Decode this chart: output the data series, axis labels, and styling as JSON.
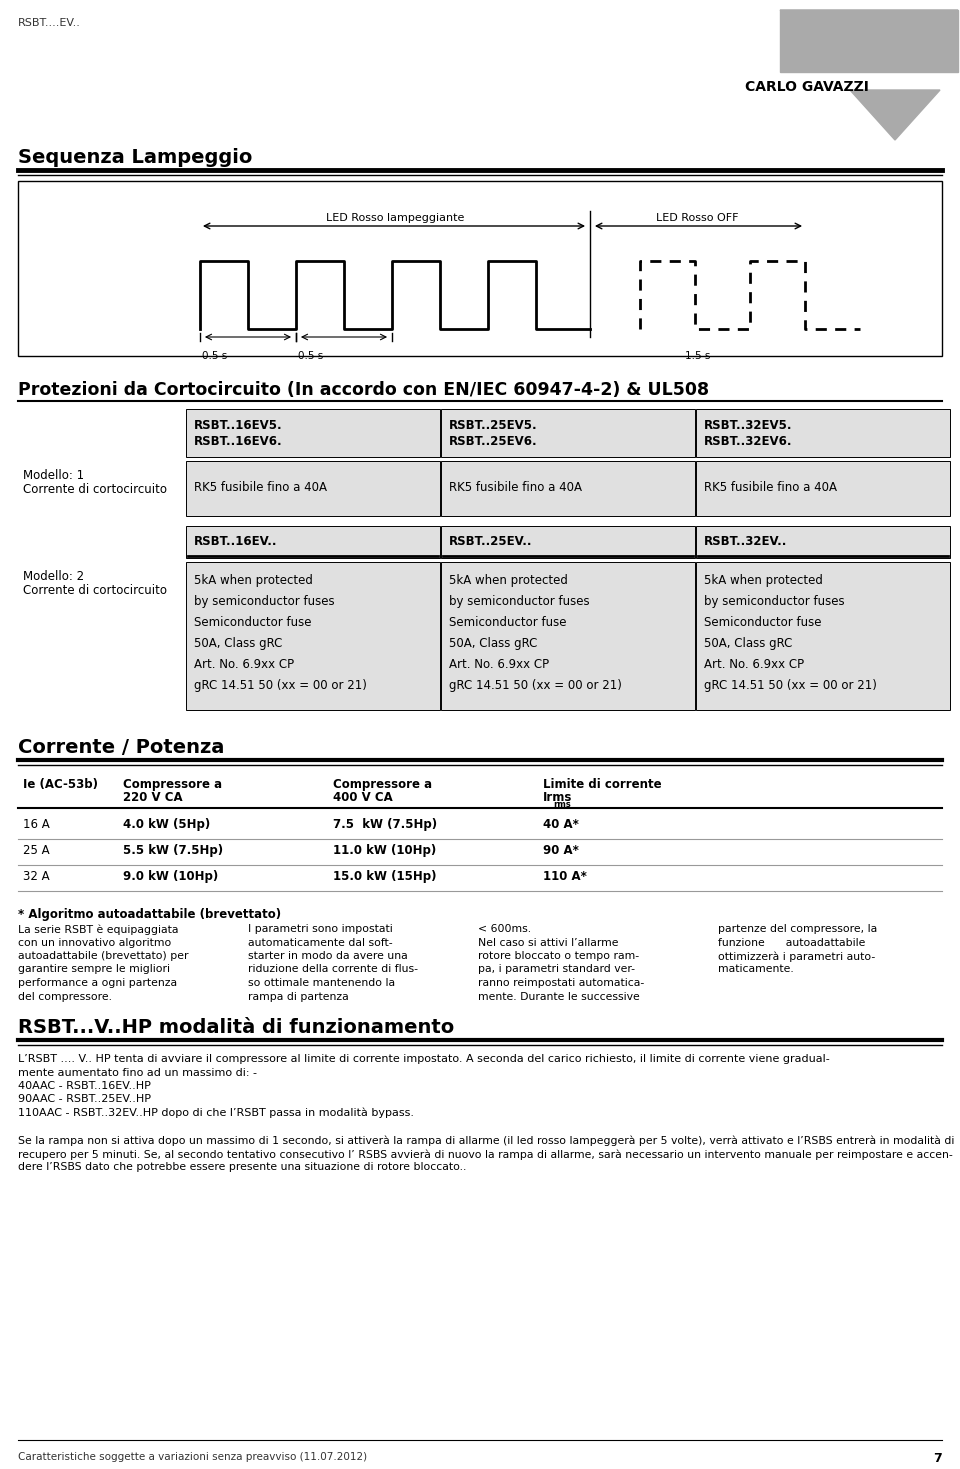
{
  "page_title": "RSBT....EV..",
  "brand": "CARLO GAVAZZI",
  "bg_color": "#ffffff",
  "section1_title": "Sequenza Lampeggio",
  "led_rosso_lampeggiante": "LED Rosso lampeggiante",
  "led_rosso_off": "LED Rosso OFF",
  "time1": "0.5 s",
  "time2": "0.5 s",
  "time3": "1.5 s",
  "section2_title": "Protezioni da Cortocircuito (In accordo con EN/IEC 60947-4-2) & UL508",
  "col_headers": [
    "RSBT..16EV5.\nRSBT..16EV6.",
    "RSBT..25EV5.\nRSBT..25EV6.",
    "RSBT..32EV5.\nRSBT..32EV6."
  ],
  "col_headers2": [
    "RSBT..16EV..",
    "RSBT..25EV..",
    "RSBT..32EV.."
  ],
  "row1_label1": "Modello: 1",
  "row1_label2": "Corrente di cortocircuito",
  "row1_values": [
    "RK5 fusibile fino a 40A",
    "RK5 fusibile fino a 40A",
    "RK5 fusibile fino a 40A"
  ],
  "row2_label1": "Modello: 2",
  "row2_label2": "Corrente di cortocircuito",
  "row2_values": [
    "5kA when protected\nby semiconductor fuses\nSemiconductor fuse\n50A, Class gRC\nArt. No. 6.9xx CP\ngRC 14.51 50 (xx = 00 or 21)",
    "5kA when protected\nby semiconductor fuses\nSemiconductor fuse\n50A, Class gRC\nArt. No. 6.9xx CP\ngRC 14.51 50 (xx = 00 or 21)",
    "5kA when protected\nby semiconductor fuses\nSemiconductor fuse\n50A, Class gRC\nArt. No. 6.9xx CP\ngRC 14.51 50 (xx = 00 or 21)"
  ],
  "section3_title": "Corrente / Potenza",
  "table2_col0_header": "Ie (AC-53b)",
  "table2_col1_header1": "Compressore a",
  "table2_col1_header2": "220 V CA",
  "table2_col2_header1": "Compressore a",
  "table2_col2_header2": "400 V CA",
  "table2_col3_header1": "Limite di corrente",
  "table2_col3_header2": "Irms",
  "table2_rows": [
    [
      "16 A",
      "4.0 kW (5Hp)",
      "7.5  kW (7.5Hp)",
      "40 A*"
    ],
    [
      "25 A",
      "5.5 kW (7.5Hp)",
      "11.0 kW (10Hp)",
      "90 A*"
    ],
    [
      "32 A",
      "9.0 kW (10Hp)",
      "15.0 kW (15Hp)",
      "110 A*"
    ]
  ],
  "algo_title": "* Algoritmo autoadattabile (brevettato)",
  "algo_col1": "La serie RSBT è equipaggiata\ncon un innovativo algoritmo\nautoadattabile (brevettato) per\ngarantire sempre le migliori\nperformance a ogni partenza\ndel compressore.",
  "algo_col2": "I parametri sono impostati\nautomaticamente dal soft-\nstarter in modo da avere una\nriduzione della corrente di flus-\nso ottimale mantenendo la\nrampa di partenza",
  "algo_col3": "< 600ms.\nNel caso si attivi l’allarme\nrotore bloccato o tempo ram-\npa, i parametri standard ver-\nranno reimpostati automatica-\nmente. Durante le successive",
  "algo_col4": "partenze del compressore, la\nfunzione      autoadattabile\nottimizzerà i parametri auto-\nmaticamente.",
  "section4_title": "RSBT...V..HP modalità di funzionamento",
  "rsbt_line1": "L’RSBT .... V.. HP tenta di avviare il compressore al limite di corrente impostato. A seconda del carico richiesto, il limite di corrente viene gradual-",
  "rsbt_line2": "mente aumentato fino ad un massimo di: -",
  "rsbt_line3": "40AAC - RSBT..16EV..HP",
  "rsbt_line4": "90AAC - RSBT..25EV..HP",
  "rsbt_line5": "110AAC - RSBT..32EV..HP dopo di che l’RSBT passa in modalità bypass.",
  "final_line1": "Se la rampa non si attiva dopo un massimo di 1 secondo, si attiverà la rampa di allarme (il led rosso lampeggerà per 5 volte), verrà attivato e l’RSBS entrerà in modalità di",
  "final_line2": "recupero per 5 minuti. Se, al secondo tentativo consecutivo l’ RSBS avvierà di nuovo la rampa di allarme, sarà necessario un intervento manuale per reimpostare e accen-",
  "final_line3": "dere l’RSBS dato che potrebbe essere presente una situazione di rotore bloccato..",
  "footer_text": "Caratteristiche soggette a variazioni senza preavviso (11.07.2012)",
  "footer_page": "7",
  "gray_cell": "#e0e0e0",
  "logo_gray": "#aaaaaa"
}
